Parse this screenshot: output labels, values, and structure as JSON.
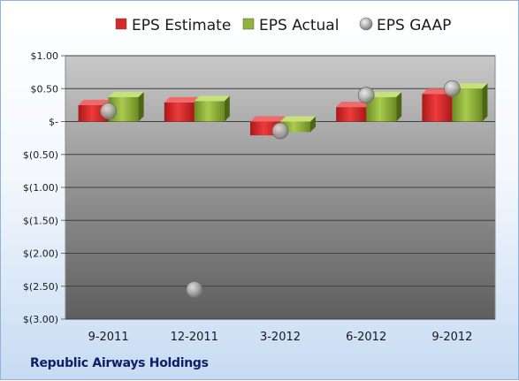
{
  "footer": {
    "company": "Republic Airways Holdings"
  },
  "colors": {
    "estimate": "#d42a2a",
    "actual": "#8fb33a",
    "gaap": "#b5b5b5"
  },
  "chart_data": {
    "type": "bar",
    "title": "",
    "xlabel": "",
    "ylabel": "",
    "categories": [
      "9-2011",
      "12-2011",
      "3-2012",
      "6-2012",
      "9-2012"
    ],
    "ylim": [
      -3.0,
      1.0
    ],
    "yticks": [
      1.0,
      0.5,
      0.0,
      -0.5,
      -1.0,
      -1.5,
      -2.0,
      -2.5,
      -3.0
    ],
    "ytick_labels": [
      "$1.00",
      "$0.50",
      "$-",
      "$(0.50)",
      "$(1.00)",
      "$(1.50)",
      "$(2.00)",
      "$(2.50)",
      "$(3.00)"
    ],
    "grid": true,
    "legend_position": "top",
    "series": [
      {
        "name": "EPS Estimate",
        "kind": "bar",
        "values": [
          0.25,
          0.29,
          -0.21,
          0.22,
          0.42
        ]
      },
      {
        "name": "EPS Actual",
        "kind": "bar",
        "values": [
          0.37,
          0.31,
          -0.16,
          0.37,
          0.5
        ]
      },
      {
        "name": "EPS GAAP",
        "kind": "scatter",
        "values": [
          0.16,
          -2.55,
          -0.14,
          0.4,
          0.5
        ]
      }
    ]
  }
}
